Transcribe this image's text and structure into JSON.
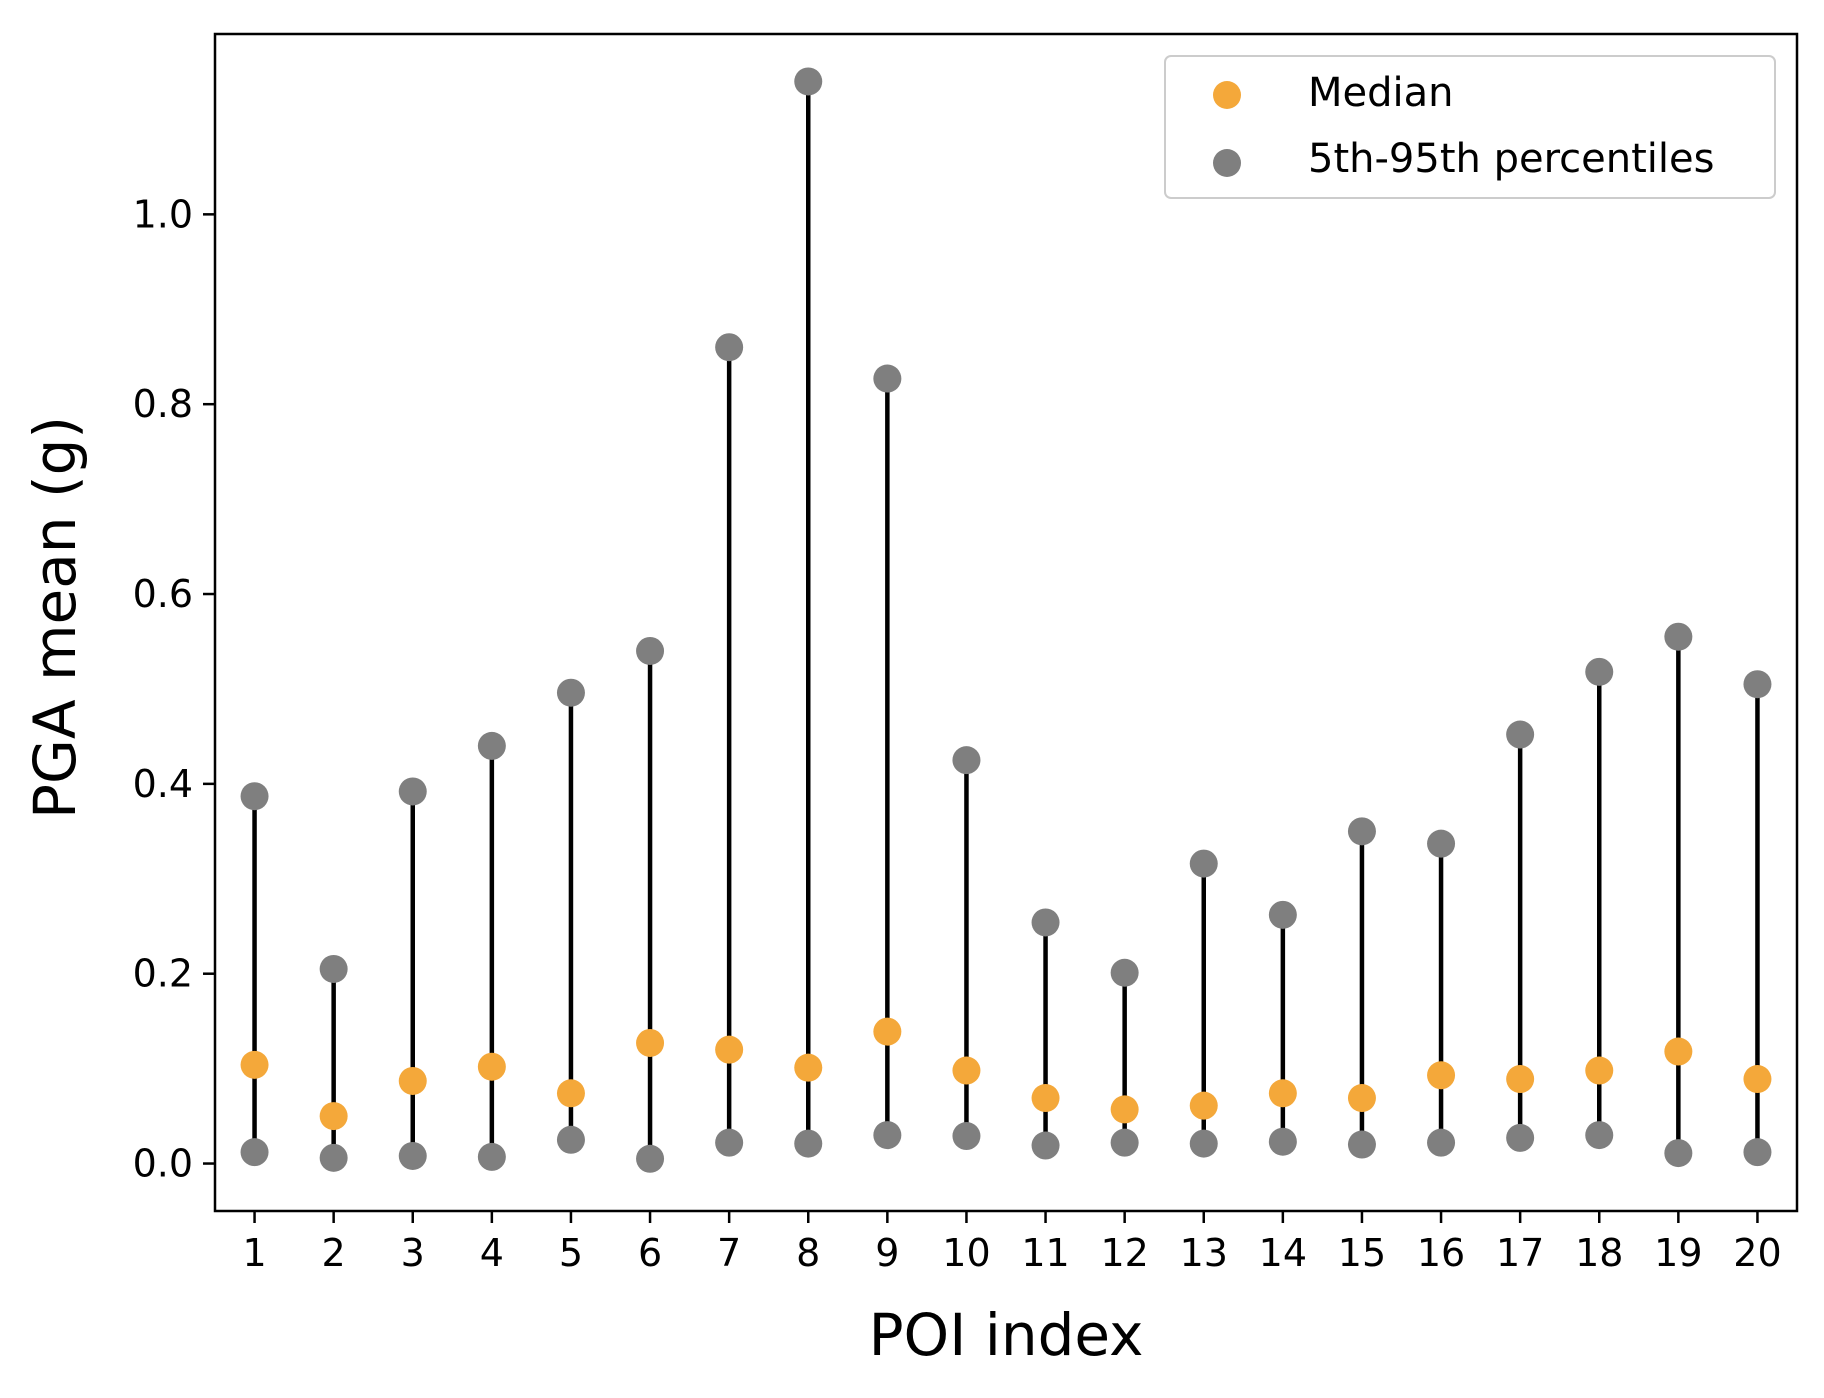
{
  "chart_data": {
    "type": "scatter",
    "xlabel": "POI index",
    "ylabel": "PGA mean (g)",
    "x_ticks": [
      "1",
      "2",
      "3",
      "4",
      "5",
      "6",
      "7",
      "8",
      "9",
      "10",
      "11",
      "12",
      "13",
      "14",
      "15",
      "16",
      "17",
      "18",
      "19",
      "20"
    ],
    "y_ticks": [
      "0.0",
      "0.2",
      "0.4",
      "0.6",
      "0.8",
      "1.0"
    ],
    "y_tick_values": [
      0.0,
      0.2,
      0.4,
      0.6,
      0.8,
      1.0
    ],
    "xlim": [
      0.5,
      20.5
    ],
    "ylim": [
      -0.05,
      1.19
    ],
    "x": [
      1,
      2,
      3,
      4,
      5,
      6,
      7,
      8,
      9,
      10,
      11,
      12,
      13,
      14,
      15,
      16,
      17,
      18,
      19,
      20
    ],
    "series": [
      {
        "name": "Median",
        "color": "#f4a83a",
        "values": [
          0.104,
          0.05,
          0.087,
          0.102,
          0.074,
          0.127,
          0.12,
          0.101,
          0.139,
          0.098,
          0.069,
          0.057,
          0.061,
          0.074,
          0.069,
          0.093,
          0.089,
          0.098,
          0.118,
          0.089
        ]
      },
      {
        "name": "5th-95th percentiles",
        "color": "#7f7f7f",
        "low": [
          0.012,
          0.006,
          0.008,
          0.007,
          0.025,
          0.005,
          0.022,
          0.021,
          0.03,
          0.029,
          0.019,
          0.022,
          0.021,
          0.023,
          0.02,
          0.022,
          0.027,
          0.03,
          0.011,
          0.012
        ],
        "high": [
          0.387,
          0.205,
          0.392,
          0.44,
          0.496,
          0.54,
          0.86,
          1.14,
          0.827,
          0.425,
          0.254,
          0.201,
          0.316,
          0.262,
          0.35,
          0.337,
          0.452,
          0.518,
          0.555,
          0.505
        ]
      }
    ],
    "legend": {
      "position": "upper-right",
      "entries": [
        "Median",
        "5th-95th percentiles"
      ]
    },
    "grid": false
  }
}
